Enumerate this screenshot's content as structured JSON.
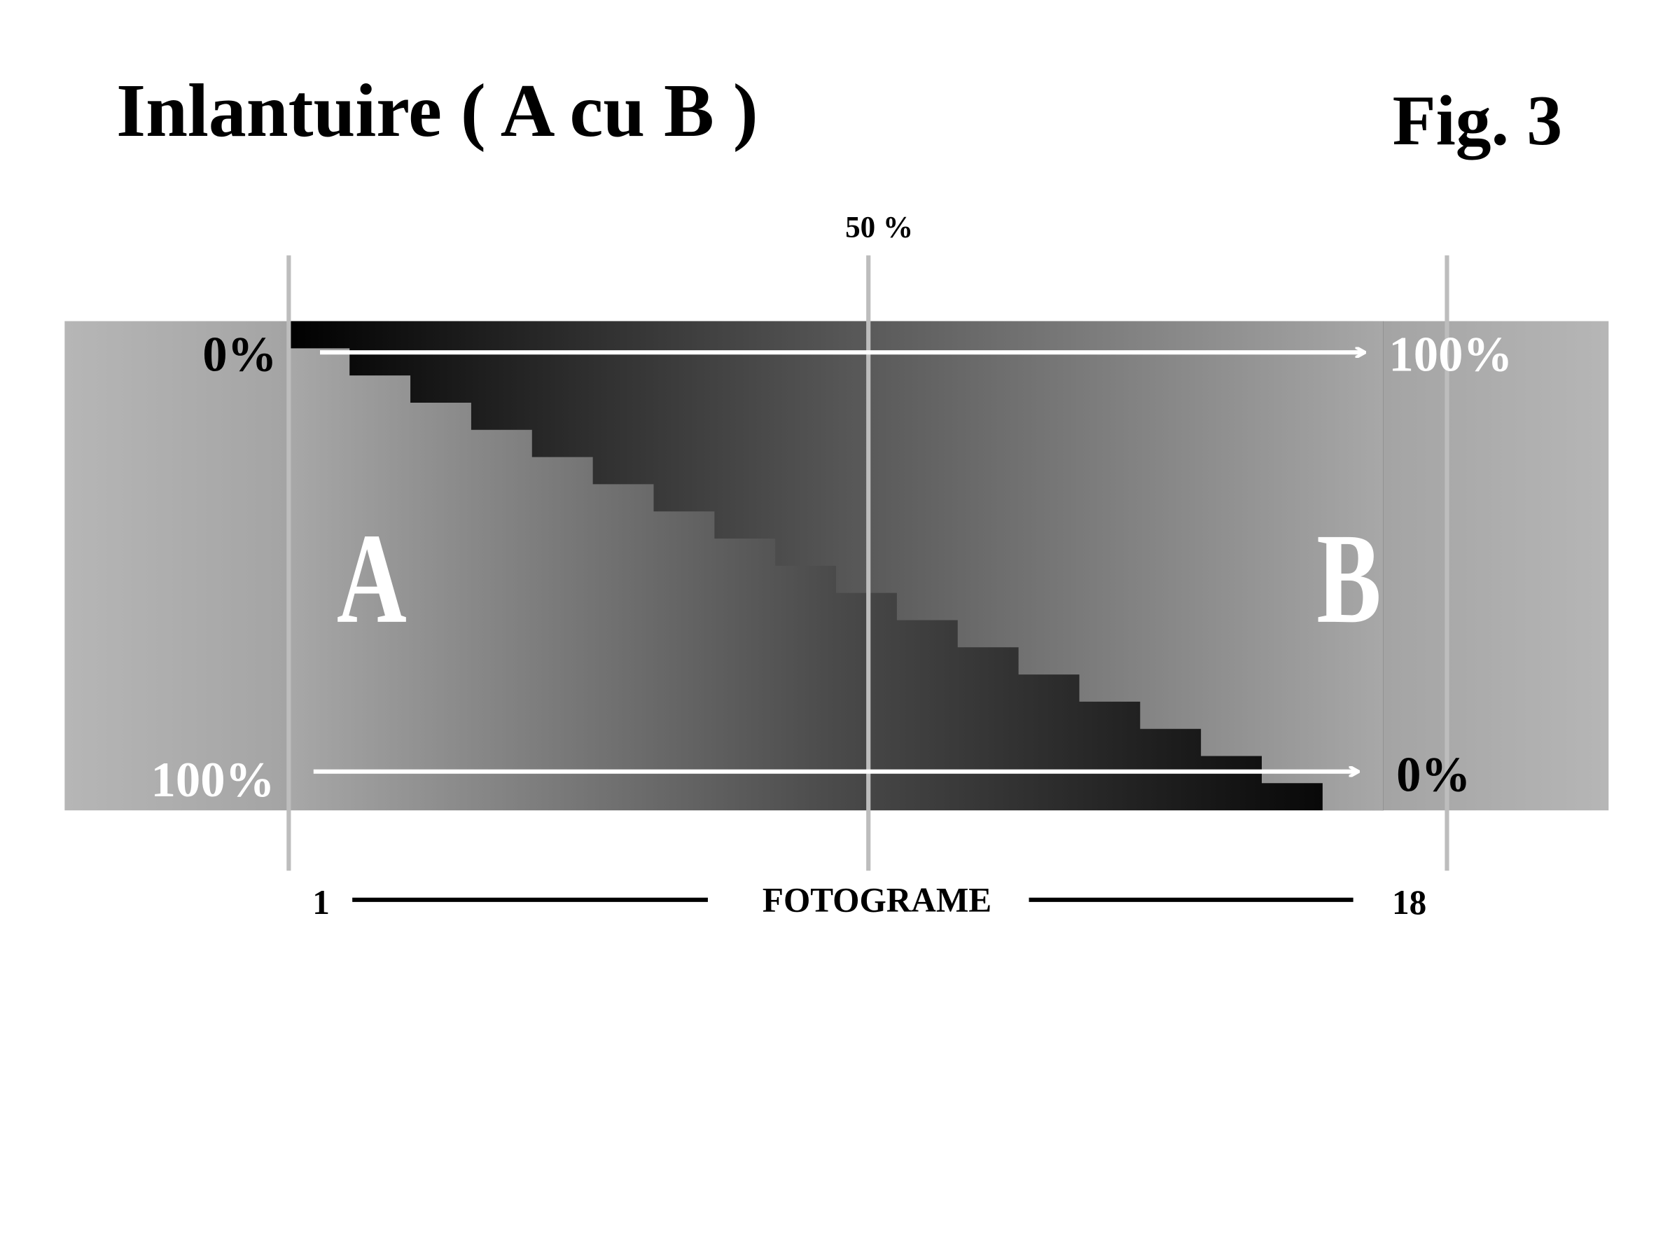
{
  "header": {
    "title": "Inlantuire ( A cu B )",
    "figure": "Fig. 3"
  },
  "diagram": {
    "midpoint_label": "50 %",
    "top_left_label": "0%",
    "top_right_label": "100%",
    "bottom_left_label": "100%",
    "bottom_right_label": "0%",
    "shot_a": "A",
    "shot_b": "B",
    "axis_start": "1",
    "axis_label": "FOTOGRAME",
    "axis_end": "18"
  }
}
